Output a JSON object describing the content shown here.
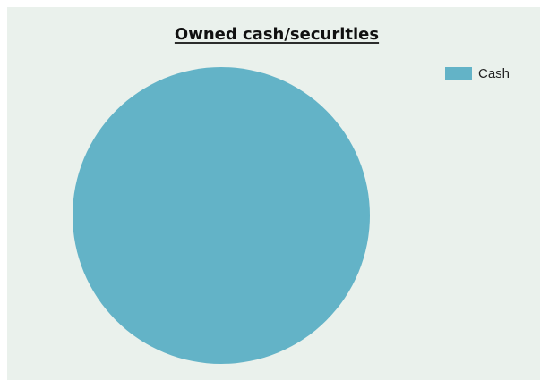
{
  "chart_data": {
    "type": "pie",
    "title": "Owned cash/securities",
    "slices": [
      {
        "label": "Cash",
        "value": 100,
        "color": "#63b3c7"
      }
    ],
    "legend": {
      "placement": "top-right"
    }
  },
  "colors": {
    "background": "#eaf1ec",
    "title": "#111111"
  }
}
